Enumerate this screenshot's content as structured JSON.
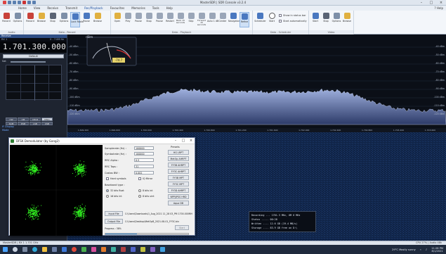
{
  "window": {
    "title": "MasterSDR | SDR Console v3.2.4"
  },
  "menu": {
    "items": [
      "Home",
      "View",
      "Receive",
      "Transmit",
      "Rec/Playback",
      "Favourites",
      "Memories",
      "Tools",
      "Help"
    ],
    "active": "Rec/Playback",
    "help": "? Help"
  },
  "ribbon": {
    "groups": [
      {
        "label": "Audio",
        "buttons": [
          "Record",
          "Options"
        ]
      },
      {
        "label": "Data - Record",
        "buttons": [
          "Record",
          "Browse",
          "Stop",
          "Options",
          "Lock Radio",
          "Pause",
          "Browse"
        ]
      },
      {
        "label": "Data - Playback",
        "buttons": [
          "Open",
          "Play",
          "Pause",
          "Stop",
          "Pause",
          "Restart",
          "Back 15 seconds",
          "Skip",
          "Forward 15 seconds",
          "Auto 1 dB",
          "Center",
          "Navigator",
          "Refine"
        ]
      },
      {
        "label": "Data - Scheduler",
        "buttons": [
          "Scheduler",
          "Start"
        ],
        "checks": [
          "Show in status bar",
          "Start automatically"
        ]
      },
      {
        "label": "Video",
        "buttons": [
          "Start",
          "Stop",
          "Options",
          "Browse"
        ]
      }
    ]
  },
  "left_panel": {
    "header": "Receive",
    "sub_left": "RX 1",
    "sub_right": "0 - 7.0M Hz",
    "frequency": "1.701.300.000",
    "mode": "Default",
    "gain_label": "Sat",
    "display_label": "IF Display",
    "mode_label": "Mode",
    "buttons": [
      "CW",
      "AM",
      "CW-R",
      "CW-L",
      "SAM",
      "DSB",
      "LSB",
      "USB"
    ]
  },
  "spectrum": {
    "unit": "dBm",
    "meter_value": "-74.7",
    "db_ticks": [
      "-40 dBm",
      "-50 dBm",
      "-60 dBm",
      "-70 dBm",
      "-80 dBm",
      "-90 dBm",
      "-100 dBm",
      "-110 dBm",
      "-120 dBm",
      "-130 dBm"
    ],
    "freq_ticks": [
      "1.699.200",
      "1.699.600",
      "1.700.000",
      "1.700.400",
      "1.700.800",
      "1.701.200",
      "1.701.600",
      "1.702.000",
      "1.702.400",
      "1.702.800",
      "1.703.200",
      "1.703.600"
    ]
  },
  "dialog": {
    "title": "DFSK Demodulator (by Gang2)",
    "fields": [
      {
        "label": "Samplerate (Hz) :",
        "value": "100000"
      },
      {
        "label": "Symbolrate (Hz) :",
        "value": "100000"
      },
      {
        "label": "RRC Alpha :",
        "value": "0.5"
      },
      {
        "label": "RRC Taps :",
        "value": "31"
      },
      {
        "label": "Costas BW :",
        "value": "0.002"
      }
    ],
    "checks": [
      "Hard symbols",
      "IQ Mirror"
    ],
    "baseband_label": "Baseband type :",
    "radios": [
      {
        "label": "32 bits float",
        "on": true
      },
      {
        "label": "8 bits int",
        "on": false
      },
      {
        "label": "16 bits int",
        "on": false
      },
      {
        "label": "8 bits uint",
        "on": false
      }
    ],
    "presets_label": "Presets",
    "presets": [
      "HG LRPT",
      "MetOp AHRPT",
      "FY3B AHRPT",
      "FY3C AHRPT",
      "FY3B MPT",
      "FY3C MPT",
      "FY3D AHRPT",
      "NPP/JPSS HRD",
      "Aqua DB"
    ],
    "input_btn": "Input File",
    "input_path": "C:\\Users\\Downloads\\1_Aug_2021 11_28 03_PM 1700.000MHz.wav",
    "output_btn": "Output File",
    "output_path": "C:\\Users\\Desktop\\MetOpB_2021-08-01_FY3C.bin",
    "start_btn": "Start",
    "progress_label": "Progress : 38%",
    "progress": 0.38
  },
  "recording": {
    "lines": [
      "Recording ... 1701.3 MHz, 6M 6 MHz",
      "Status ..... 00:28",
      "Written .... 12.6 GB (19.4 MB/s)",
      "Storage .... 83.9 GB free on D:\\"
    ]
  },
  "status": {
    "left": "MasterSDR | RX 1 1.701 GHz",
    "right": "CPU 27% | Audio 48k"
  },
  "tray": {
    "weather": "29°C  Mostly sunny",
    "time": "11:28 PM",
    "date": "8/1/2021"
  },
  "colors": {
    "accent": "#2f4f86",
    "spectrum_fill": "#6e82b8",
    "constellation": "#33ff22"
  }
}
